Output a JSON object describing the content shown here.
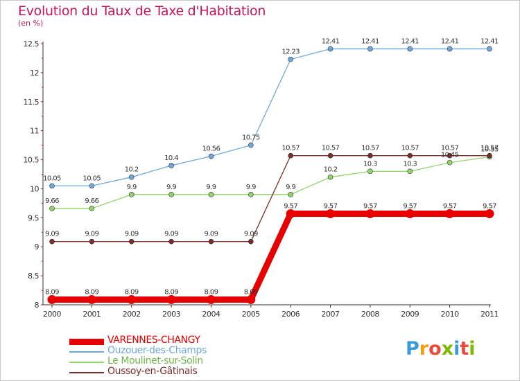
{
  "page": {
    "title": "Evolution du Taux de Taxe d'Habitation",
    "subtitle": "(en %)"
  },
  "logo": {
    "text": "Proxiti",
    "colors": [
      "#3a9bdc",
      "#f39c12",
      "#e74c3c",
      "#7fb800",
      "#3a9bdc",
      "#e74c3c",
      "#7fb800"
    ]
  },
  "chart_data": {
    "type": "line",
    "title": "Evolution du Taux de Taxe d'Habitation",
    "ylabel": "(en %)",
    "x": [
      "2000",
      "2001",
      "2002",
      "2003",
      "2004",
      "2005",
      "2006",
      "2007",
      "2008",
      "2009",
      "2010",
      "2011"
    ],
    "ylim": [
      8,
      12.5
    ],
    "y_ticks": [
      "8",
      "8.5",
      "9",
      "9.5",
      "10",
      "10.5",
      "11",
      "11.5",
      "12",
      "12.5"
    ],
    "y_tick_values": [
      8,
      8.5,
      9,
      9.5,
      10,
      10.5,
      11,
      11.5,
      12,
      12.5
    ],
    "grid": false,
    "legend_position": "bottom-left",
    "series": [
      {
        "name": "VARENNES-CHANGY",
        "color": "#e60000",
        "values": [
          8.09,
          8.09,
          8.09,
          8.09,
          8.09,
          8.09,
          9.57,
          9.57,
          9.57,
          9.57,
          9.57,
          9.57
        ],
        "labels": [
          "8.09",
          "8.09",
          "8.09",
          "8.09",
          "8.09",
          "8.09",
          "9.57",
          "9.57",
          "9.57",
          "9.57",
          "9.57",
          "9.57"
        ]
      },
      {
        "name": "Ouzouer-des-Champs",
        "color": "#6fa8dc",
        "values": [
          10.05,
          10.05,
          10.2,
          10.4,
          10.56,
          10.75,
          12.23,
          12.41,
          12.41,
          12.41,
          12.41,
          12.41
        ],
        "labels": [
          "10.05",
          "10.05",
          "10.2",
          "10.4",
          "10.56",
          "10.75",
          "12.23",
          "12.41",
          "12.41",
          "12.41",
          "12.41",
          "12.41"
        ]
      },
      {
        "name": "Le Moulinet-sur-Solin",
        "color": "#93d36b",
        "values": [
          9.66,
          9.66,
          9.9,
          9.9,
          9.9,
          9.9,
          9.9,
          10.2,
          10.3,
          10.3,
          10.45,
          10.55
        ],
        "labels": [
          "9.66",
          "9.66",
          "9.9",
          "9.9",
          "9.9",
          "9.9",
          "9.9",
          "10.2",
          "10.3",
          "10.3",
          "10.45",
          "10.55"
        ]
      },
      {
        "name": "Oussoy-en-Gâtinais",
        "color": "#7a2e2e",
        "values": [
          9.09,
          9.09,
          9.09,
          9.09,
          9.09,
          9.09,
          10.57,
          10.57,
          10.57,
          10.57,
          10.57,
          10.57
        ],
        "labels": [
          "9.09",
          "9.09",
          "9.09",
          "9.09",
          "9.09",
          "9.09",
          "10.57",
          "10.57",
          "10.57",
          "10.57",
          "10.57",
          "10.57"
        ]
      }
    ]
  }
}
